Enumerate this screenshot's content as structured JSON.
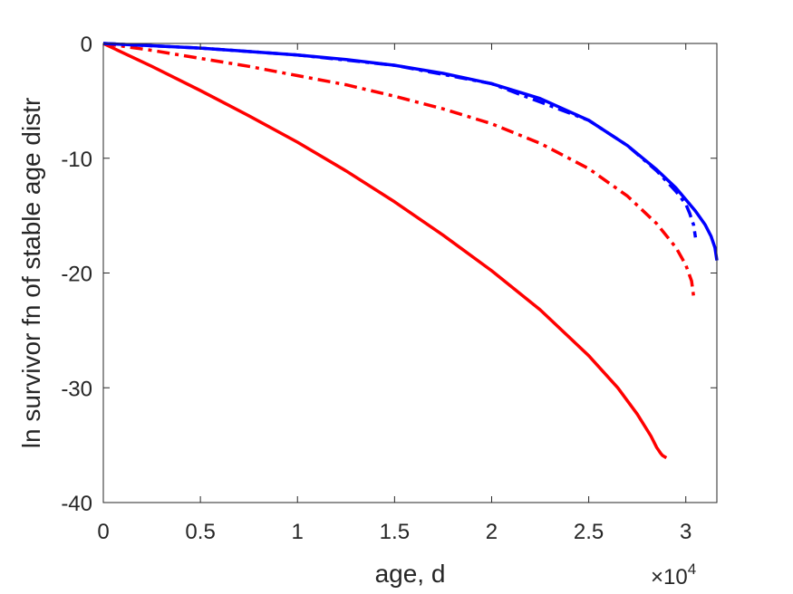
{
  "chart_data": {
    "type": "line",
    "title": "",
    "xlabel": "age, d",
    "ylabel": "ln survivor fn of stable age distr",
    "x_exponent_label": "×10",
    "x_exponent_power": "4",
    "xlim": [
      0,
      31600
    ],
    "ylim": [
      -40,
      0
    ],
    "x_ticks": [
      0,
      5000,
      10000,
      15000,
      20000,
      25000,
      30000
    ],
    "x_tick_labels": [
      "0",
      "0.5",
      "1",
      "1.5",
      "2",
      "2.5",
      "3"
    ],
    "y_ticks": [
      0,
      -10,
      -20,
      -30,
      -40
    ],
    "y_tick_labels": [
      "0",
      "-10",
      "-20",
      "-30",
      "-40"
    ],
    "grid": false,
    "legend": "none",
    "series": [
      {
        "color": "#ff0000",
        "style": "solid",
        "x": [
          0,
          2500,
          5000,
          7500,
          10000,
          12500,
          15000,
          17500,
          20000,
          22500,
          25000,
          26500,
          27500,
          28200,
          28500,
          28700,
          28800,
          29000
        ],
        "y": [
          0,
          -2.0,
          -4.1,
          -6.3,
          -8.6,
          -11.1,
          -13.8,
          -16.7,
          -19.8,
          -23.2,
          -27.2,
          -30.0,
          -32.3,
          -34.2,
          -35.2,
          -35.7,
          -35.9,
          -36.1
        ]
      },
      {
        "color": "#ff0000",
        "style": "dashdot",
        "x": [
          0,
          2500,
          5000,
          7500,
          10000,
          12500,
          15000,
          17500,
          20000,
          22500,
          25000,
          27000,
          28500,
          29500,
          30000,
          30300,
          30400
        ],
        "y": [
          0,
          -0.6,
          -1.3,
          -2.0,
          -2.8,
          -3.6,
          -4.6,
          -5.7,
          -7.0,
          -8.7,
          -10.9,
          -13.3,
          -15.7,
          -17.8,
          -19.3,
          -20.7,
          -22.0
        ]
      },
      {
        "color": "#0000ff",
        "style": "solid",
        "x": [
          0,
          2500,
          5000,
          7500,
          10000,
          12500,
          15000,
          17500,
          20000,
          22500,
          25000,
          27000,
          28500,
          29500,
          30000,
          30500,
          31000,
          31300,
          31500,
          31600
        ],
        "y": [
          0,
          -0.2,
          -0.4,
          -0.7,
          -1.0,
          -1.4,
          -1.9,
          -2.6,
          -3.5,
          -4.8,
          -6.7,
          -8.9,
          -11.0,
          -12.6,
          -13.6,
          -14.6,
          -15.8,
          -16.8,
          -17.8,
          -18.9
        ]
      },
      {
        "color": "#0000ff",
        "style": "dashdot",
        "x": [
          0,
          5000,
          10000,
          15000,
          20000,
          25000,
          27000,
          28500,
          29500,
          30000,
          30200,
          30400,
          30500
        ],
        "y": [
          0,
          -0.4,
          -1.0,
          -1.9,
          -3.5,
          -6.7,
          -8.9,
          -11.1,
          -12.9,
          -14.0,
          -14.8,
          -15.8,
          -16.9
        ]
      }
    ]
  }
}
